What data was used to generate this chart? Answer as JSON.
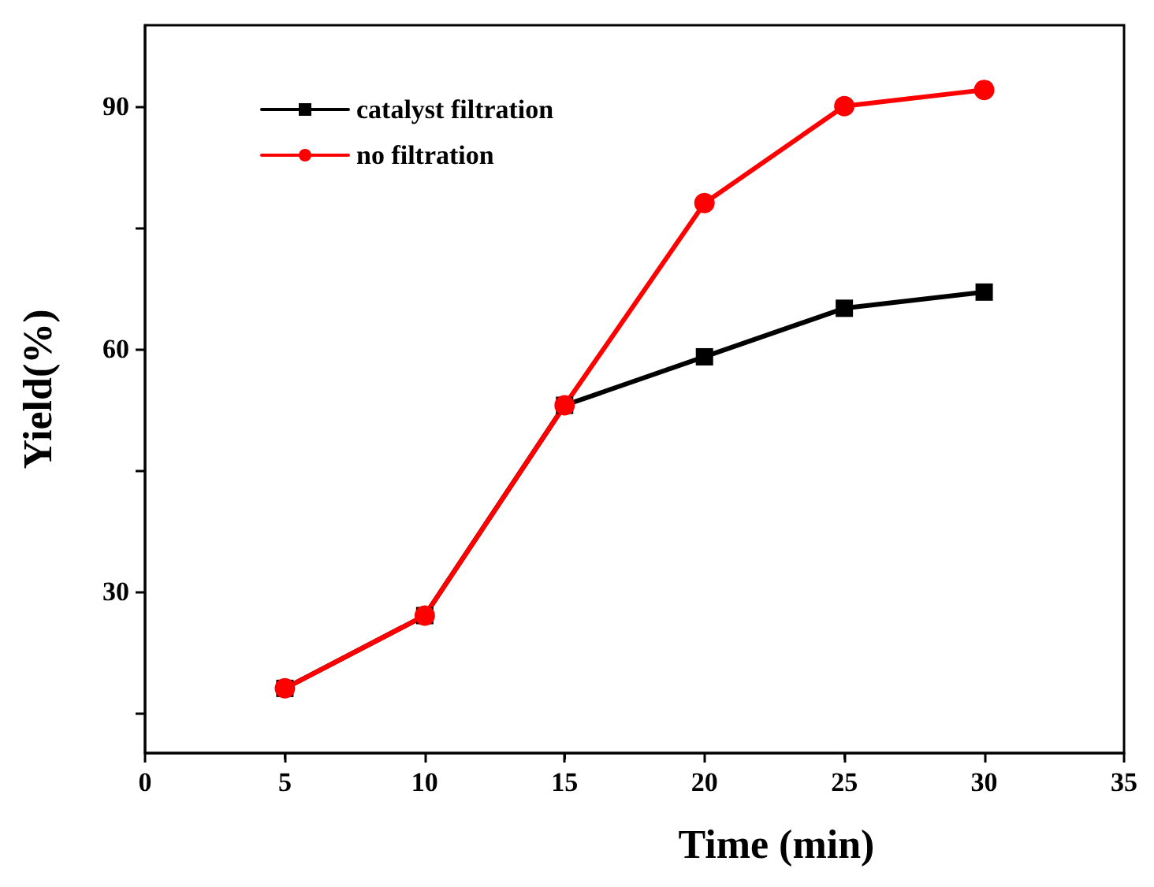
{
  "chart_data": {
    "type": "line",
    "xlabel": "Time (min)",
    "ylabel": "Yield(%)",
    "x": [
      5,
      10,
      15,
      20,
      25,
      30
    ],
    "series": [
      {
        "name": "catalyst filtration",
        "color": "#000000",
        "marker": "square",
        "values": [
          18,
          27,
          53,
          59,
          65,
          67
        ]
      },
      {
        "name": "no filtration",
        "color": "#ff0000",
        "marker": "circle",
        "values": [
          18,
          27,
          53,
          78,
          90,
          92
        ]
      }
    ],
    "xlim": [
      0,
      35
    ],
    "xticks": [
      0,
      5,
      10,
      15,
      20,
      25,
      30,
      35
    ],
    "ylim": [
      10,
      100
    ],
    "yticks": [
      {
        "value": 15,
        "label": null
      },
      30,
      {
        "value": 45,
        "label": null
      },
      60,
      {
        "value": 75,
        "label": null
      },
      90
    ],
    "grid": false,
    "legend": "top left",
    "line_style": "solid"
  }
}
